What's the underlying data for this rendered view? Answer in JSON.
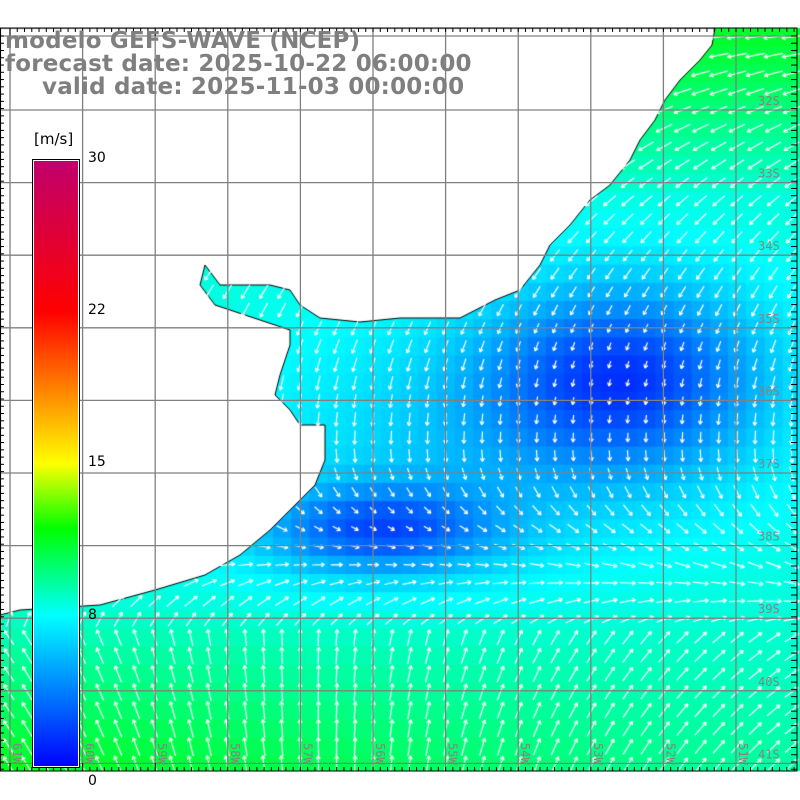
{
  "title": {
    "line1": "modelo GEFS-WAVE (NCEP)",
    "line2": "forecast date: 2025-10-22 06:00:00",
    "line3": "valid date: 2025-11-03 00:00:00"
  },
  "colorbar": {
    "unit": "[m/s]",
    "labels": [
      "30",
      "22",
      "15",
      "8",
      "0"
    ],
    "stops": [
      {
        "value": 0,
        "color": "#0000ff"
      },
      {
        "value": 8,
        "color": "#00ffff"
      },
      {
        "value": 12,
        "color": "#00ff00"
      },
      {
        "value": 15,
        "color": "#ffff00"
      },
      {
        "value": 22,
        "color": "#ff0000"
      },
      {
        "value": 30,
        "color": "#c0006e"
      }
    ]
  },
  "axes": {
    "longitudes": [
      "61W",
      "60W",
      "59W",
      "58W",
      "57W",
      "56W",
      "55W",
      "54W",
      "53W",
      "52W",
      "51W"
    ],
    "latitudes": [
      "32S",
      "33S",
      "34S",
      "35S",
      "36S",
      "37S",
      "38S",
      "39S",
      "40S",
      "41S"
    ]
  },
  "colors": {
    "grid": "#808080",
    "label": "#8c7f7f",
    "land": "#ffffff",
    "coast": "#000000",
    "arrow": "#ffffff"
  }
}
